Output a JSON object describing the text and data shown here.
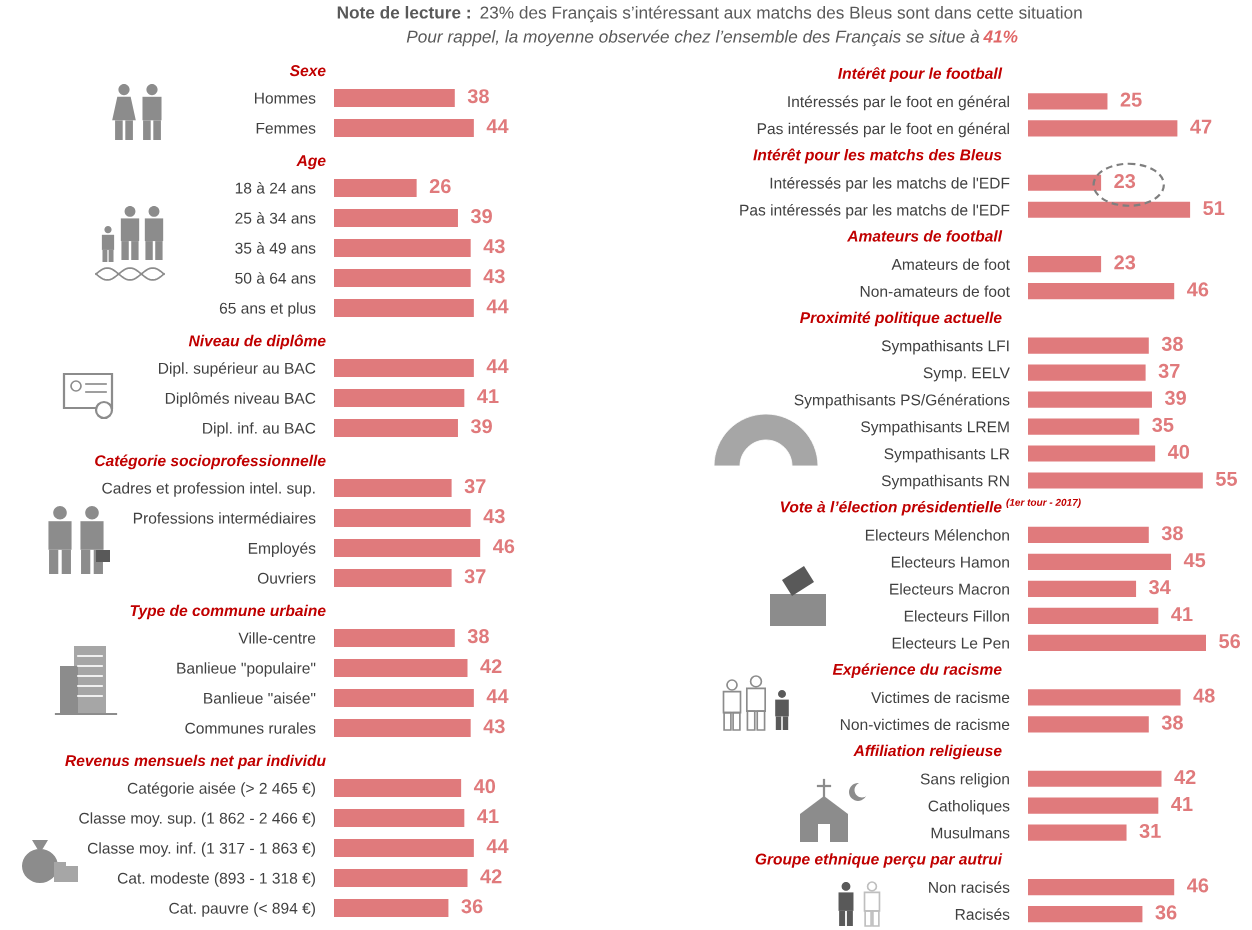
{
  "chart_data": [
    {
      "type": "other",
      "annotations": [
        "Note de lecture :",
        "23% des Français s’intéressant aux matchs des Bleus sont dans cette situation",
        "Pour rappel, la moyenne observée chez l’ensemble des Français se situe à",
        "41%"
      ]
    },
    {
      "type": "bar",
      "orientation": "horizontal",
      "title": "Sexe",
      "categories": [
        "Hommes",
        "Femmes"
      ],
      "values": [
        38,
        44
      ],
      "color": "#e07a7c",
      "data_labels": true,
      "tick_labels": "y"
    },
    {
      "type": "bar",
      "orientation": "horizontal",
      "title": "Age",
      "categories": [
        "18 à 24 ans",
        "25 à 34 ans",
        "35 à 49 ans",
        "50 à 64 ans",
        "65 ans et plus"
      ],
      "values": [
        26,
        39,
        43,
        43,
        44
      ],
      "color": "#e07a7c",
      "data_labels": true,
      "tick_labels": "y"
    },
    {
      "type": "bar",
      "orientation": "horizontal",
      "title": "Niveau de diplôme",
      "categories": [
        "Dipl. supérieur au BAC",
        "Diplômés niveau BAC",
        "Dipl. inf. au BAC"
      ],
      "values": [
        44,
        41,
        39
      ],
      "color": "#e07a7c",
      "data_labels": true,
      "tick_labels": "y"
    },
    {
      "type": "bar",
      "orientation": "horizontal",
      "title": "Catégorie socioprofessionnelle",
      "categories": [
        "Cadres et profession intel. sup.",
        "Professions intermédiaires",
        "Employés",
        "Ouvriers"
      ],
      "values": [
        37,
        43,
        46,
        37
      ],
      "color": "#e07a7c",
      "data_labels": true,
      "tick_labels": "y"
    },
    {
      "type": "bar",
      "orientation": "horizontal",
      "title": "Type de commune urbaine",
      "categories": [
        "Ville-centre",
        "Banlieue \"populaire\"",
        "Banlieue \"aisée\"",
        "Communes rurales"
      ],
      "values": [
        38,
        42,
        44,
        43
      ],
      "color": "#e07a7c",
      "data_labels": true,
      "tick_labels": "y"
    },
    {
      "type": "bar",
      "orientation": "horizontal",
      "title": "Revenus mensuels net par individu",
      "categories": [
        "Catégorie aisée (> 2 465 €)",
        "Classe moy. sup. (1 862 - 2 466 €)",
        "Classe moy. inf. (1 317 - 1 863 €)",
        "Cat. modeste (893 - 1 318 €)",
        "Cat. pauvre (< 894 €)"
      ],
      "values": [
        40,
        41,
        44,
        42,
        36
      ],
      "color": "#e07a7c",
      "data_labels": true,
      "tick_labels": "y"
    },
    {
      "type": "bar",
      "orientation": "horizontal",
      "title": "Intérêt pour le football",
      "categories": [
        "Intéressés par le foot en général",
        "Pas intéressés par le foot en général"
      ],
      "values": [
        25,
        47
      ],
      "color": "#e07a7c",
      "data_labels": true,
      "tick_labels": "y"
    },
    {
      "type": "bar",
      "orientation": "horizontal",
      "title": "Intérêt pour les matchs des Bleus",
      "categories": [
        "Intéressés par les matchs de l'EDF",
        "Pas intéressés par les matchs de l'EDF"
      ],
      "values": [
        23,
        51
      ],
      "color": "#e07a7c",
      "data_labels": true,
      "tick_labels": "y"
    },
    {
      "type": "bar",
      "orientation": "horizontal",
      "title": "Amateurs de football",
      "categories": [
        "Amateurs de foot",
        "Non-amateurs de foot"
      ],
      "values": [
        23,
        46
      ],
      "color": "#e07a7c",
      "data_labels": true,
      "tick_labels": "y"
    },
    {
      "type": "bar",
      "orientation": "horizontal",
      "title": "Proximité politique actuelle",
      "categories": [
        "Sympathisants LFI",
        "Symp. EELV",
        "Sympathisants PS/Générations",
        "Sympathisants LREM",
        "Sympathisants LR",
        "Sympathisants RN"
      ],
      "values": [
        38,
        37,
        39,
        35,
        40,
        55
      ],
      "color": "#e07a7c",
      "data_labels": true,
      "tick_labels": "y"
    },
    {
      "type": "bar",
      "orientation": "horizontal",
      "title": "Vote à l’élection présidentielle $^{(1er tour - 2017)}$",
      "categories": [
        "Electeurs Mélenchon",
        "Electeurs Hamon",
        "Electeurs Macron",
        "Electeurs Fillon",
        "Electeurs Le Pen"
      ],
      "values": [
        38,
        45,
        34,
        41,
        56
      ],
      "color": "#e07a7c",
      "data_labels": true,
      "tick_labels": "y"
    },
    {
      "type": "bar",
      "orientation": "horizontal",
      "title": "Expérience du racisme",
      "categories": [
        "Victimes de racisme",
        "Non-victimes de racisme"
      ],
      "values": [
        48,
        38
      ],
      "color": "#e07a7c",
      "data_labels": true,
      "tick_labels": "y"
    },
    {
      "type": "bar",
      "orientation": "horizontal",
      "title": "Affiliation religieuse",
      "categories": [
        "Sans religion",
        "Catholiques",
        "Musulmans"
      ],
      "values": [
        42,
        41,
        31
      ],
      "color": "#e07a7c",
      "data_labels": true,
      "tick_labels": "y"
    },
    {
      "type": "bar",
      "orientation": "horizontal",
      "title": "Groupe ethnique perçu par autrui",
      "categories": [
        "Non racisés",
        "Racisés"
      ],
      "values": [
        46,
        36
      ],
      "color": "#e07a7c",
      "data_labels": true,
      "tick_labels": "y"
    }
  ]
}
